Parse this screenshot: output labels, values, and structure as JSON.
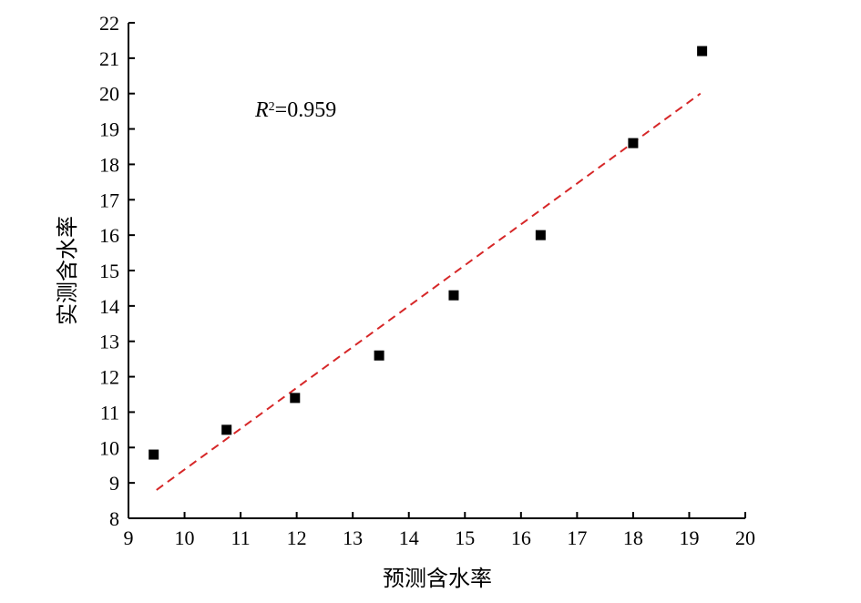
{
  "chart_data": {
    "type": "scatter",
    "xlabel": "预测含水率",
    "ylabel": "实测含水率",
    "xlim": [
      9,
      20
    ],
    "ylim": [
      8,
      22
    ],
    "xticks": [
      9,
      10,
      11,
      12,
      13,
      14,
      15,
      16,
      17,
      18,
      19,
      20
    ],
    "yticks": [
      8,
      9,
      10,
      11,
      12,
      13,
      14,
      15,
      16,
      17,
      18,
      19,
      20,
      21,
      22
    ],
    "grid": false,
    "legend": "none",
    "annotation": {
      "r_symbol": "R",
      "superscript": "2",
      "text": "=0.959"
    },
    "series": [
      {
        "marker": "square",
        "color": "#000000",
        "points": [
          {
            "x": 9.45,
            "y": 9.8
          },
          {
            "x": 10.75,
            "y": 10.5
          },
          {
            "x": 11.97,
            "y": 11.4
          },
          {
            "x": 13.47,
            "y": 12.6
          },
          {
            "x": 14.8,
            "y": 14.3
          },
          {
            "x": 16.35,
            "y": 16.0
          },
          {
            "x": 18.0,
            "y": 18.6
          },
          {
            "x": 19.23,
            "y": 21.2
          }
        ]
      }
    ],
    "fit_line": {
      "style": "dashed",
      "color": "#d62728",
      "points": [
        {
          "x": 9.5,
          "y": 8.8
        },
        {
          "x": 19.2,
          "y": 20.0
        }
      ]
    }
  }
}
